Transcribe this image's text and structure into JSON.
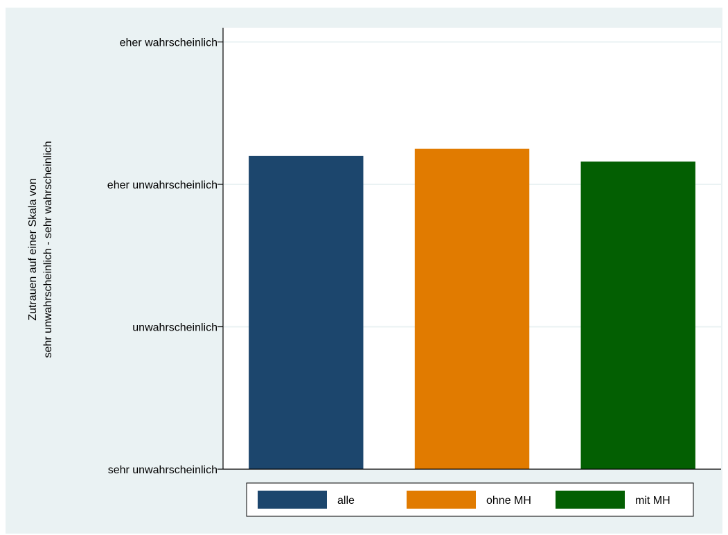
{
  "chart_data": {
    "type": "bar",
    "title": "",
    "xlabel": "",
    "ylabel_lines": [
      "Zutrauen auf einer Skala von",
      "sehr unwahrscheinlich - sehr wahrscheinlich"
    ],
    "y_ticks": [
      {
        "value": 1,
        "label": "sehr unwahrscheinlich"
      },
      {
        "value": 2,
        "label": "unwahrscheinlich"
      },
      {
        "value": 3,
        "label": "eher unwahrscheinlich"
      },
      {
        "value": 4,
        "label": "eher wahrscheinlich"
      }
    ],
    "ylim": [
      1,
      4.1
    ],
    "grid": true,
    "legend_position": "bottom",
    "series": [
      {
        "name": "alle",
        "value": 3.2,
        "color": "#1c466d"
      },
      {
        "name": "ohne MH",
        "value": 3.25,
        "color": "#e17b00"
      },
      {
        "name": "mit MH",
        "value": 3.16,
        "color": "#035f02"
      }
    ],
    "colors": {
      "outer_background": "#eaf2f3",
      "plot_background": "#ffffff",
      "gridline": "#eaf2f3"
    }
  }
}
